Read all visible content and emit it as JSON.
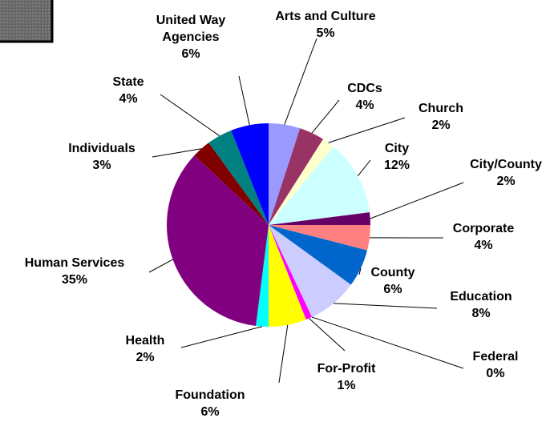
{
  "chart_data": {
    "type": "pie",
    "categories": [
      "Arts and Culture",
      "CDCs",
      "Church",
      "City",
      "City/County",
      "Corporate",
      "County",
      "Education",
      "Federal",
      "For-Profit",
      "Foundation",
      "Health",
      "Human Services",
      "Individuals",
      "State",
      "United Way Agencies"
    ],
    "values": [
      5,
      4,
      2,
      12,
      2,
      4,
      6,
      8,
      0,
      1,
      6,
      2,
      35,
      3,
      4,
      6
    ],
    "value_labels": [
      "5%",
      "4%",
      "2%",
      "12%",
      "2%",
      "4%",
      "6%",
      "8%",
      "0%",
      "1%",
      "6%",
      "2%",
      "35%",
      "3%",
      "4%",
      "6%"
    ],
    "colors": [
      "#9999ff",
      "#993366",
      "#ffffcc",
      "#ccffff",
      "#660066",
      "#ff8080",
      "#0066cc",
      "#ccccff",
      "#000080",
      "#ff00ff",
      "#ffff00",
      "#00ffff",
      "#800080",
      "#800000",
      "#008080",
      "#0000ff"
    ]
  }
}
